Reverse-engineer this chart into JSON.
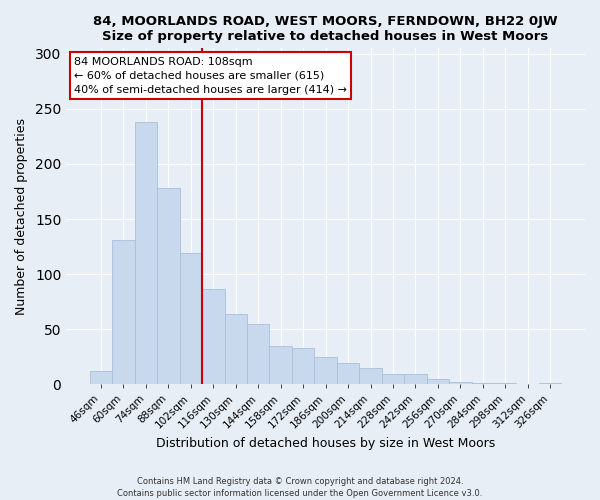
{
  "title1": "84, MOORLANDS ROAD, WEST MOORS, FERNDOWN, BH22 0JW",
  "title2": "Size of property relative to detached houses in West Moors",
  "xlabel": "Distribution of detached houses by size in West Moors",
  "ylabel": "Number of detached properties",
  "bar_labels": [
    "46sqm",
    "60sqm",
    "74sqm",
    "88sqm",
    "102sqm",
    "116sqm",
    "130sqm",
    "144sqm",
    "158sqm",
    "172sqm",
    "186sqm",
    "200sqm",
    "214sqm",
    "228sqm",
    "242sqm",
    "256sqm",
    "270sqm",
    "284sqm",
    "298sqm",
    "312sqm",
    "326sqm"
  ],
  "bar_values": [
    12,
    131,
    238,
    178,
    119,
    86,
    64,
    55,
    35,
    33,
    25,
    19,
    15,
    9,
    9,
    5,
    2,
    1,
    1,
    0,
    1
  ],
  "bar_color": "#c8d9ed",
  "bar_edge_color": "#a8c0dc",
  "vline_x": 4.5,
  "vline_color": "#cc0000",
  "annotation_title": "84 MOORLANDS ROAD: 108sqm",
  "annotation_line1": "← 60% of detached houses are smaller (615)",
  "annotation_line2": "40% of semi-detached houses are larger (414) →",
  "annotation_box_color": "#ffffff",
  "annotation_box_edge": "#cc0000",
  "ylim": [
    0,
    305
  ],
  "yticks": [
    0,
    50,
    100,
    150,
    200,
    250,
    300
  ],
  "footer1": "Contains HM Land Registry data © Crown copyright and database right 2024.",
  "footer2": "Contains public sector information licensed under the Open Government Licence v3.0.",
  "bg_color": "#e8eef6",
  "plot_bg_color": "#e8eef6"
}
